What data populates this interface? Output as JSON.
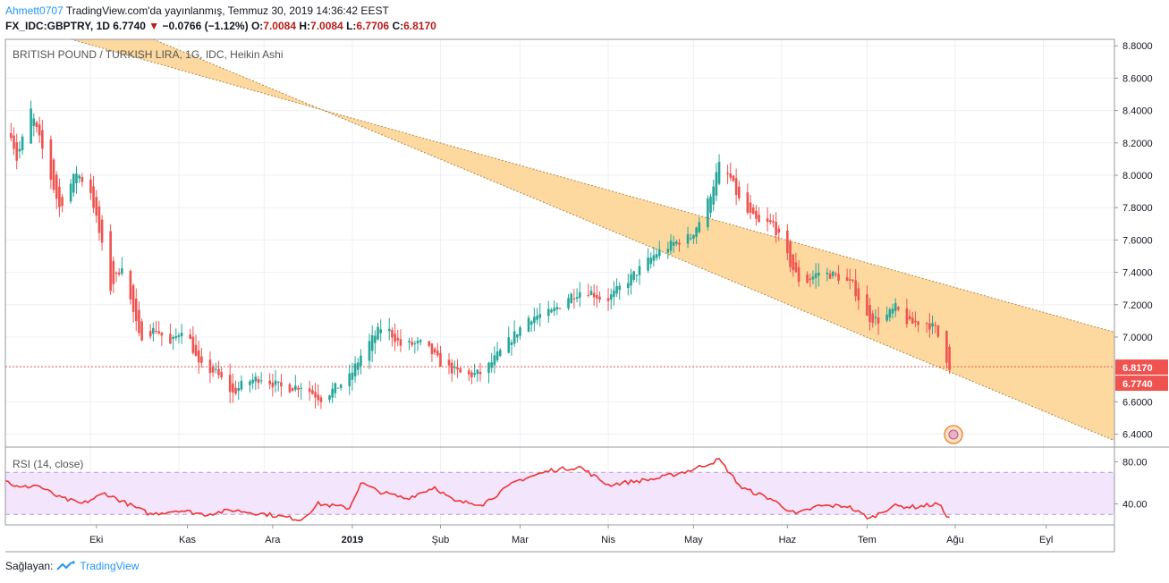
{
  "header": {
    "user": "Ahmett0707",
    "published": "TradingView.com'da yayınlanmış, Temmuz 30, 2019 14:36:42 EEST",
    "symbol": "FX_IDC:GBPTRY, 1D",
    "last": "6.7740",
    "change_arrow": "▼",
    "change": "−0.0766 (−1.12%)",
    "o_label": "O:",
    "o": "7.0084",
    "h_label": "H:",
    "h": "7.0084",
    "l_label": "L:",
    "l": "6.7706",
    "c_label": "C:",
    "c": "6.8170"
  },
  "footer": {
    "prefix": "Sağlayan:",
    "brand": "TradingView"
  },
  "colors": {
    "up": "#26a69a",
    "down": "#ef5350",
    "channel": "#fdd9a0",
    "rsi_band": "#f3e5fb",
    "rsi_line": "#ef3535",
    "accent": "#2196f3"
  },
  "chart_data": [
    {
      "type": "candlestick",
      "title": "BRITISH POUND / TURKISH LIRA, 1G, IDC, Heikin Ashi",
      "ylim": [
        6.32,
        8.84
      ],
      "y_ticks": [
        "8.8000",
        "8.6000",
        "8.4000",
        "8.2000",
        "8.0000",
        "7.8000",
        "7.6000",
        "7.4000",
        "7.2000",
        "7.0000",
        "6.6000",
        "6.4000"
      ],
      "x_ticks": [
        "Eki",
        "Kas",
        "Ara",
        "2019",
        "Şub",
        "Mar",
        "Nis",
        "May",
        "Haz",
        "Tem",
        "Ağu",
        "Eyl"
      ],
      "price_labels": [
        "6.8170",
        "6.7740"
      ],
      "grid": true,
      "channel": {
        "upper": [
          {
            "date": "2018-09-12",
            "value": 8.9
          },
          {
            "date": "2019-09-26",
            "value": 7.03
          }
        ],
        "lower": [
          {
            "date": "2018-10-23",
            "value": 8.84
          },
          {
            "date": "2019-09-26",
            "value": 6.36
          }
        ]
      },
      "ohlc_anchors": [
        {
          "date": "2018-09-01",
          "close": 8.42
        },
        {
          "date": "2018-09-05",
          "close": 8.1
        },
        {
          "date": "2018-09-10",
          "close": 8.4
        },
        {
          "date": "2018-09-15",
          "close": 8.1
        },
        {
          "date": "2018-09-20",
          "close": 7.8
        },
        {
          "date": "2018-09-26",
          "close": 8.02
        },
        {
          "date": "2018-10-01",
          "close": 7.9
        },
        {
          "date": "2018-10-08",
          "close": 7.3
        },
        {
          "date": "2018-10-12",
          "close": 7.45
        },
        {
          "date": "2018-10-18",
          "close": 7.0
        },
        {
          "date": "2018-10-24",
          "close": 7.05
        },
        {
          "date": "2018-10-29",
          "close": 6.95
        },
        {
          "date": "2018-11-03",
          "close": 7.08
        },
        {
          "date": "2018-11-08",
          "close": 6.82
        },
        {
          "date": "2018-11-14",
          "close": 6.78
        },
        {
          "date": "2018-11-20",
          "close": 6.65
        },
        {
          "date": "2018-11-24",
          "close": 6.72
        },
        {
          "date": "2018-11-30",
          "close": 6.75
        },
        {
          "date": "2018-12-08",
          "close": 6.68
        },
        {
          "date": "2018-12-14",
          "close": 6.7
        },
        {
          "date": "2018-12-21",
          "close": 6.62
        },
        {
          "date": "2018-12-31",
          "close": 6.75
        },
        {
          "date": "2019-01-05",
          "close": 6.92
        },
        {
          "date": "2019-01-12",
          "close": 7.08
        },
        {
          "date": "2019-01-18",
          "close": 6.95
        },
        {
          "date": "2019-01-26",
          "close": 6.96
        },
        {
          "date": "2019-02-02",
          "close": 6.82
        },
        {
          "date": "2019-02-10",
          "close": 6.76
        },
        {
          "date": "2019-02-16",
          "close": 6.78
        },
        {
          "date": "2019-02-24",
          "close": 6.95
        },
        {
          "date": "2019-03-04",
          "close": 7.12
        },
        {
          "date": "2019-03-12",
          "close": 7.15
        },
        {
          "date": "2019-03-18",
          "close": 7.25
        },
        {
          "date": "2019-03-24",
          "close": 7.3
        },
        {
          "date": "2019-03-31",
          "close": 7.22
        },
        {
          "date": "2019-04-06",
          "close": 7.32
        },
        {
          "date": "2019-04-12",
          "close": 7.42
        },
        {
          "date": "2019-04-18",
          "close": 7.52
        },
        {
          "date": "2019-04-24",
          "close": 7.58
        },
        {
          "date": "2019-04-30",
          "close": 7.62
        },
        {
          "date": "2019-05-05",
          "close": 7.78
        },
        {
          "date": "2019-05-10",
          "close": 8.06
        },
        {
          "date": "2019-05-14",
          "close": 7.98
        },
        {
          "date": "2019-05-18",
          "close": 7.8
        },
        {
          "date": "2019-05-24",
          "close": 7.7
        },
        {
          "date": "2019-05-29",
          "close": 7.7
        },
        {
          "date": "2019-06-04",
          "close": 7.45
        },
        {
          "date": "2019-06-08",
          "close": 7.32
        },
        {
          "date": "2019-06-14",
          "close": 7.4
        },
        {
          "date": "2019-06-20",
          "close": 7.38
        },
        {
          "date": "2019-06-26",
          "close": 7.32
        },
        {
          "date": "2019-07-01",
          "close": 7.12
        },
        {
          "date": "2019-07-06",
          "close": 7.1
        },
        {
          "date": "2019-07-11",
          "close": 7.18
        },
        {
          "date": "2019-07-16",
          "close": 7.08
        },
        {
          "date": "2019-07-21",
          "close": 7.1
        },
        {
          "date": "2019-07-25",
          "close": 7.05
        },
        {
          "date": "2019-07-30",
          "close": 6.82
        }
      ]
    },
    {
      "type": "line",
      "title": "RSI (14, close)",
      "ylim": [
        20,
        94
      ],
      "y_ticks": [
        "80.00",
        "40.00"
      ],
      "band": [
        30,
        70
      ],
      "series": [
        {
          "values": [
            {
              "date": "2018-09-01",
              "value": 62
            },
            {
              "date": "2018-09-06",
              "value": 55
            },
            {
              "date": "2018-09-12",
              "value": 58
            },
            {
              "date": "2018-09-20",
              "value": 46
            },
            {
              "date": "2018-09-28",
              "value": 40
            },
            {
              "date": "2018-10-06",
              "value": 50
            },
            {
              "date": "2018-10-14",
              "value": 40
            },
            {
              "date": "2018-10-22",
              "value": 30
            },
            {
              "date": "2018-11-01",
              "value": 34
            },
            {
              "date": "2018-11-10",
              "value": 30
            },
            {
              "date": "2018-11-20",
              "value": 34
            },
            {
              "date": "2018-12-02",
              "value": 30
            },
            {
              "date": "2018-12-14",
              "value": 25
            },
            {
              "date": "2018-12-20",
              "value": 40
            },
            {
              "date": "2018-12-31",
              "value": 36
            },
            {
              "date": "2019-01-04",
              "value": 60
            },
            {
              "date": "2019-01-10",
              "value": 52
            },
            {
              "date": "2019-01-20",
              "value": 45
            },
            {
              "date": "2019-01-30",
              "value": 56
            },
            {
              "date": "2019-02-06",
              "value": 42
            },
            {
              "date": "2019-02-16",
              "value": 40
            },
            {
              "date": "2019-02-28",
              "value": 62
            },
            {
              "date": "2019-03-12",
              "value": 72
            },
            {
              "date": "2019-03-22",
              "value": 75
            },
            {
              "date": "2019-04-01",
              "value": 58
            },
            {
              "date": "2019-04-06",
              "value": 60
            },
            {
              "date": "2019-04-18",
              "value": 64
            },
            {
              "date": "2019-04-30",
              "value": 72
            },
            {
              "date": "2019-05-10",
              "value": 82
            },
            {
              "date": "2019-05-18",
              "value": 55
            },
            {
              "date": "2019-05-28",
              "value": 45
            },
            {
              "date": "2019-06-06",
              "value": 30
            },
            {
              "date": "2019-06-14",
              "value": 38
            },
            {
              "date": "2019-06-24",
              "value": 38
            },
            {
              "date": "2019-07-02",
              "value": 26
            },
            {
              "date": "2019-07-10",
              "value": 38
            },
            {
              "date": "2019-07-18",
              "value": 37
            },
            {
              "date": "2019-07-26",
              "value": 40
            },
            {
              "date": "2019-07-30",
              "value": 26
            }
          ]
        }
      ]
    }
  ]
}
